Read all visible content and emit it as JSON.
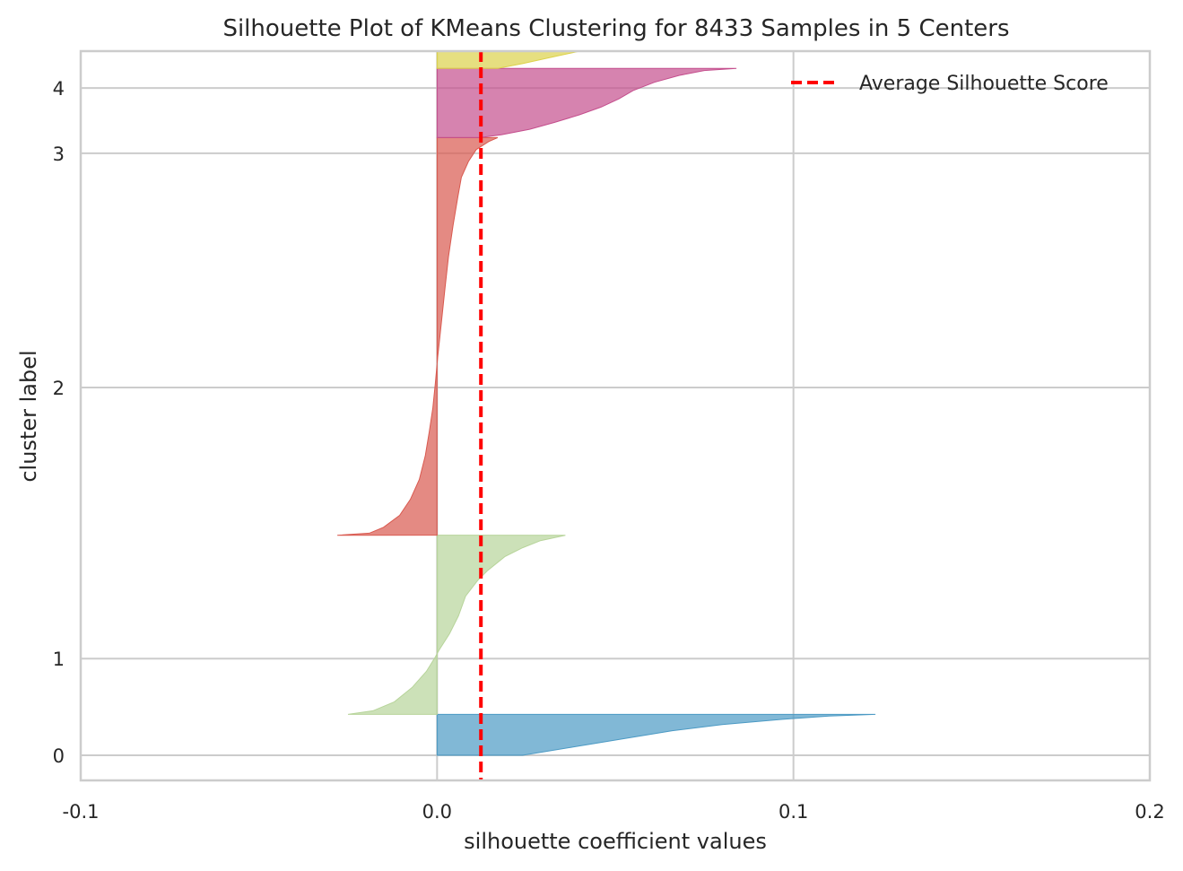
{
  "chart_data": {
    "type": "area",
    "title": "Silhouette Plot of KMeans Clustering for 8433 Samples in 5 Centers",
    "xlabel": "silhouette coefficient values",
    "ylabel": "cluster label",
    "xlim": [
      -0.1,
      0.2
    ],
    "x_ticks": [
      {
        "value": -0.1,
        "label": "-0.1"
      },
      {
        "value": 0.0,
        "label": "0.0"
      },
      {
        "value": 0.1,
        "label": "0.1"
      },
      {
        "value": 0.2,
        "label": "0.2"
      }
    ],
    "ylim": [
      -320,
      8960
    ],
    "grid": true,
    "legend_position": "top-right",
    "average_score": {
      "label": "Average Silhouette Score",
      "value": 0.0123,
      "color": "#ff0000"
    },
    "clusters": [
      {
        "label": "0",
        "color": "#4c9ac4",
        "y_lower": 0,
        "y_upper": 520,
        "tick_y": 0,
        "profile": [
          [
            0.0,
            0.024
          ],
          [
            0.2,
            0.038
          ],
          [
            0.4,
            0.052
          ],
          [
            0.6,
            0.066
          ],
          [
            0.75,
            0.08
          ],
          [
            0.88,
            0.097
          ],
          [
            0.96,
            0.11
          ],
          [
            1.0,
            0.123
          ]
        ]
      },
      {
        "label": "1",
        "color": "#b7d49a",
        "y_lower": 520,
        "y_upper": 2800,
        "tick_y": 1230,
        "profile": [
          [
            0.0,
            -0.025
          ],
          [
            0.02,
            -0.018
          ],
          [
            0.07,
            -0.012
          ],
          [
            0.15,
            -0.007
          ],
          [
            0.24,
            -0.003
          ],
          [
            0.32,
            -0.0005
          ],
          [
            0.36,
            0.0006
          ],
          [
            0.45,
            0.0035
          ],
          [
            0.55,
            0.006
          ],
          [
            0.66,
            0.008
          ],
          [
            0.75,
            0.0115
          ],
          [
            0.8,
            0.014
          ],
          [
            0.88,
            0.019
          ],
          [
            0.93,
            0.024
          ],
          [
            0.97,
            0.029
          ],
          [
            1.0,
            0.036
          ]
        ]
      },
      {
        "label": "2",
        "color": "#d9594f",
        "y_lower": 2800,
        "y_upper": 7860,
        "tick_y": 4680,
        "profile": [
          [
            0.0,
            -0.028
          ],
          [
            0.005,
            -0.019
          ],
          [
            0.02,
            -0.015
          ],
          [
            0.05,
            -0.0105
          ],
          [
            0.09,
            -0.0075
          ],
          [
            0.14,
            -0.005
          ],
          [
            0.2,
            -0.0033
          ],
          [
            0.26,
            -0.0022
          ],
          [
            0.32,
            -0.0012
          ],
          [
            0.38,
            -0.0005
          ],
          [
            0.42,
            -0.0001
          ],
          [
            0.45,
            0.0002
          ],
          [
            0.5,
            0.0008
          ],
          [
            0.56,
            0.0015
          ],
          [
            0.62,
            0.0022
          ],
          [
            0.7,
            0.0032
          ],
          [
            0.78,
            0.0045
          ],
          [
            0.85,
            0.0058
          ],
          [
            0.9,
            0.0068
          ],
          [
            0.94,
            0.0088
          ],
          [
            0.97,
            0.011
          ],
          [
            0.99,
            0.0145
          ],
          [
            1.0,
            0.017
          ]
        ]
      },
      {
        "label": "3",
        "color": "#c44e8d",
        "y_lower": 7860,
        "y_upper": 8740,
        "tick_y": 7660,
        "profile": [
          [
            0.0,
            0.012
          ],
          [
            0.04,
            0.018
          ],
          [
            0.12,
            0.026
          ],
          [
            0.22,
            0.033
          ],
          [
            0.33,
            0.04
          ],
          [
            0.44,
            0.046
          ],
          [
            0.56,
            0.051
          ],
          [
            0.68,
            0.055
          ],
          [
            0.8,
            0.061
          ],
          [
            0.9,
            0.068
          ],
          [
            0.97,
            0.075
          ],
          [
            1.0,
            0.084
          ]
        ]
      },
      {
        "label": "4",
        "color": "#dcd24a",
        "y_lower": 8740,
        "y_upper": 9500,
        "tick_y": 8490,
        "profile": [
          [
            0.0,
            0.017
          ],
          [
            0.08,
            0.024
          ],
          [
            0.2,
            0.033
          ],
          [
            0.35,
            0.04
          ],
          [
            0.5,
            0.047
          ],
          [
            0.65,
            0.055
          ],
          [
            0.8,
            0.067
          ],
          [
            0.92,
            0.078
          ],
          [
            1.0,
            0.088
          ]
        ]
      }
    ]
  }
}
